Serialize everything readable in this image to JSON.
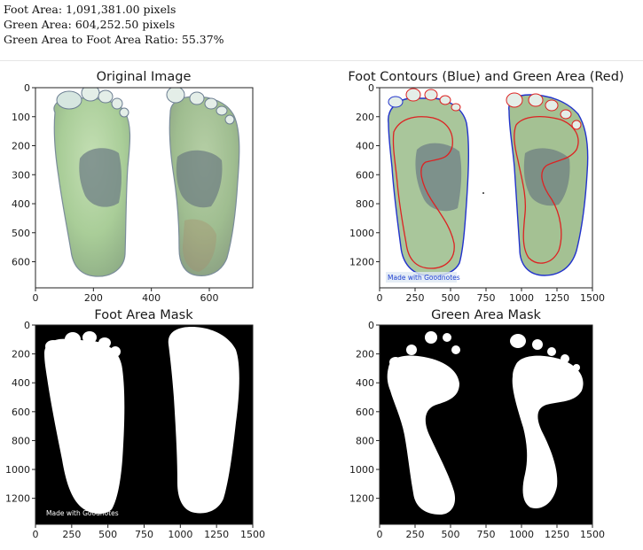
{
  "stats": {
    "foot_area": "Foot Area: 1,091,381.00 pixels",
    "green_area": "Green Area: 604,252.50 pixels",
    "ratio": "Green Area to Foot Area Ratio: 55.37%"
  },
  "colors": {
    "foot_contour": "#2233cc",
    "green_contour": "#dd2222",
    "foot_green": "#a8cf9a",
    "arch_grey": "#6f7f86",
    "mask_white": "#ffffff",
    "mask_black": "#000000"
  },
  "chart_data": [
    {
      "type": "image",
      "title": "Original Image",
      "xlim": [
        0,
        750
      ],
      "ylim": [
        690,
        0
      ],
      "xticks": [
        0,
        200,
        400,
        600
      ],
      "yticks": [
        0,
        100,
        200,
        300,
        400,
        500,
        600
      ]
    },
    {
      "type": "image",
      "title": "Foot Contours (Blue) and Green Area (Red)",
      "xlim": [
        0,
        1500
      ],
      "ylim": [
        1380,
        0
      ],
      "xticks": [
        0,
        250,
        500,
        750,
        1000,
        1250,
        1500
      ],
      "yticks": [
        0,
        200,
        400,
        600,
        800,
        1000,
        1200
      ],
      "watermark": "Made with Goodnotes"
    },
    {
      "type": "image",
      "title": "Foot Area Mask",
      "xlim": [
        0,
        1500
      ],
      "ylim": [
        1380,
        0
      ],
      "xticks": [
        0,
        250,
        500,
        750,
        1000,
        1250,
        1500
      ],
      "yticks": [
        0,
        200,
        400,
        600,
        800,
        1000,
        1200
      ],
      "watermark": "Made with Goodnotes"
    },
    {
      "type": "image",
      "title": "Green Area Mask",
      "xlim": [
        0,
        1500
      ],
      "ylim": [
        1380,
        0
      ],
      "xticks": [
        0,
        250,
        500,
        750,
        1000,
        1250,
        1500
      ],
      "yticks": [
        0,
        200,
        400,
        600,
        800,
        1000,
        1200
      ]
    }
  ]
}
